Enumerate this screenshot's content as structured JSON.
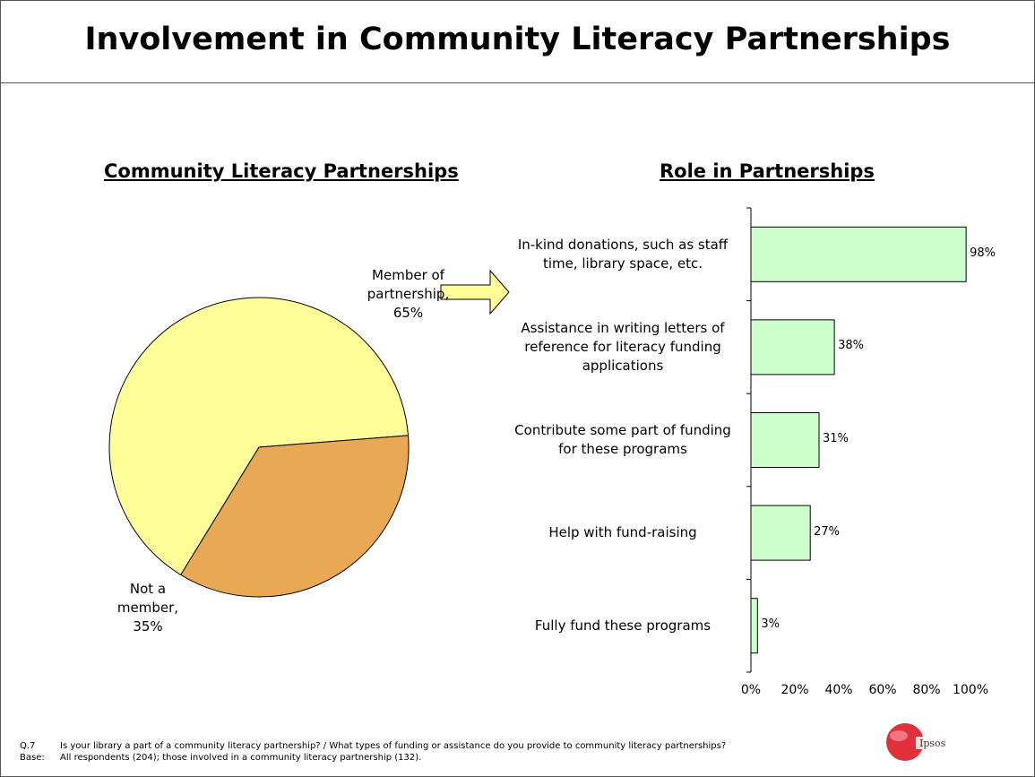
{
  "title": "Involvement in Community Literacy Partnerships",
  "colors": {
    "member": "#ffff99",
    "not_member": "#e8a854",
    "bars": "#ccffcc",
    "arrow": "#ffff99"
  },
  "chart_data": [
    {
      "type": "pie",
      "title": "Community Literacy Partnerships",
      "slices": [
        {
          "label_lines": [
            "Member of",
            "partnership,",
            "65%"
          ],
          "value": 65
        },
        {
          "label_lines": [
            "Not a",
            "member,",
            "35%"
          ],
          "value": 35
        }
      ]
    },
    {
      "type": "bar",
      "orientation": "horizontal",
      "title": "Role in Partnerships",
      "categories": [
        [
          "In-kind donations, such as staff",
          "time, library space, etc."
        ],
        [
          "Assistance in writing letters of",
          "reference for literacy funding",
          "applications"
        ],
        [
          "Contribute some part of funding",
          "for these programs"
        ],
        [
          "Help with fund-raising"
        ],
        [
          "Fully fund these programs"
        ]
      ],
      "values": [
        98,
        38,
        31,
        27,
        3
      ],
      "value_labels": [
        "98%",
        "38%",
        "31%",
        "27%",
        "3%"
      ],
      "xlim": [
        0,
        100
      ],
      "x_ticks": [
        "0%",
        "20%",
        "40%",
        "60%",
        "80%",
        "100%"
      ]
    }
  ],
  "footer": {
    "q_key": "Q.7",
    "q_text": "Is your library a part of a community literacy partnership? / What types of funding or assistance do you provide to community literacy partnerships?",
    "base_key": "Base:",
    "base_text": "All respondents (204); those involved in a community literacy partnership (132)."
  },
  "logo": {
    "text": "Ipsos"
  }
}
